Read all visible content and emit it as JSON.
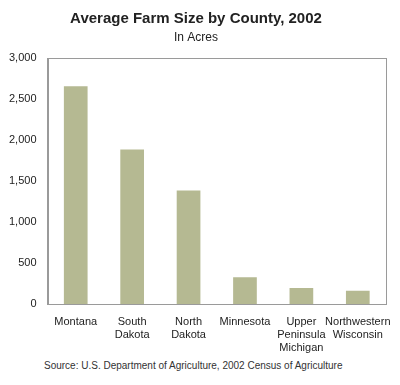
{
  "chart_data": {
    "type": "bar",
    "title": "Average Farm Size by County, 2002",
    "subtitle": "In Acres",
    "categories": [
      "Montana",
      "South Dakota",
      "North Dakota",
      "Minnesota",
      "Upper Peninsula Michigan",
      "Northwestern Wisconsin"
    ],
    "values": [
      2660,
      1890,
      1390,
      330,
      200,
      165
    ],
    "color": "#b5b992",
    "ylim": [
      0,
      3000
    ],
    "yticks": [
      0,
      500,
      {
        "value": 1000,
        "label": "1,000"
      },
      {
        "value": 1500,
        "label": "1,500"
      },
      {
        "value": 2000,
        "label": "2,000"
      },
      {
        "value": 2500,
        "label": "2,500"
      },
      {
        "value": 3000,
        "label": "3,000"
      }
    ],
    "grid": false,
    "source": "Source: U.S. Department of Agriculture, 2002 Census of Agriculture"
  }
}
